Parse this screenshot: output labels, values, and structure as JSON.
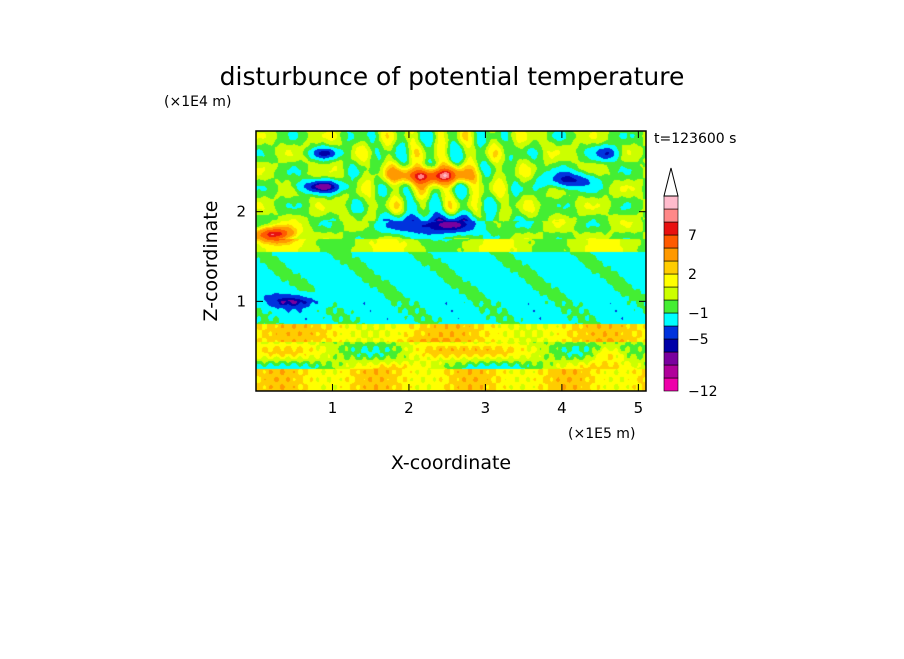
{
  "chart_data": {
    "type": "heatmap",
    "title": "disturbunce of potential temperature",
    "xlabel": "X-coordinate",
    "ylabel": "Z-coordinate",
    "x_unit": "(×1E5 m)",
    "y_unit": "(×1E4 m)",
    "time_label": "t=123600 s",
    "xlim": [
      0,
      5.1
    ],
    "ylim": [
      0,
      2.9
    ],
    "x_ticks": [
      {
        "value": 1,
        "label": "1"
      },
      {
        "value": 2,
        "label": "2"
      },
      {
        "value": 3,
        "label": "3"
      },
      {
        "value": 4,
        "label": "4"
      },
      {
        "value": 5,
        "label": "5"
      }
    ],
    "y_ticks": [
      {
        "value": 1,
        "label": "1"
      },
      {
        "value": 2,
        "label": "2"
      }
    ],
    "grid": false,
    "colorbar": {
      "placement": "right",
      "levels": [
        -12,
        -10,
        -8,
        -6,
        -5,
        -3,
        -1,
        0,
        1,
        2,
        3,
        5,
        7,
        8,
        9,
        10
      ],
      "colors": [
        "#ee00aa",
        "#b0009a",
        "#7a009e",
        "#0000a8",
        "#0033dd",
        "#00ffff",
        "#44ee33",
        "#ccff00",
        "#ffff00",
        "#ffcc00",
        "#ff9900",
        "#ff5a00",
        "#e81010",
        "#ff8888",
        "#ffbbcc"
      ],
      "over_color": "#ffffff",
      "labels": [
        {
          "value": -12,
          "label": "-12"
        },
        {
          "value": -5,
          "label": "-5"
        },
        {
          "value": -1,
          "label": "-1"
        },
        {
          "value": 2,
          "label": "2"
        },
        {
          "value": 7,
          "label": "7"
        }
      ]
    },
    "features": [
      {
        "x": 2.3,
        "z": 2.4,
        "amp": 8.5,
        "sx": 0.45,
        "sz": 0.09
      },
      {
        "x": 0.25,
        "z": 1.75,
        "amp": 8.0,
        "sx": 0.25,
        "sz": 0.08
      },
      {
        "x": 2.35,
        "z": 1.85,
        "amp": -6.5,
        "sx": 0.6,
        "sz": 0.11
      },
      {
        "x": 0.85,
        "z": 2.28,
        "amp": -6.0,
        "sx": 0.3,
        "sz": 0.07
      },
      {
        "x": 4.1,
        "z": 2.35,
        "amp": -5.5,
        "sx": 0.3,
        "sz": 0.09
      },
      {
        "x": 0.9,
        "z": 2.65,
        "amp": -4.5,
        "sx": 0.2,
        "sz": 0.06
      },
      {
        "x": 4.6,
        "z": 2.65,
        "amp": -5.0,
        "sx": 0.15,
        "sz": 0.08
      },
      {
        "x": 0.5,
        "z": 1.0,
        "amp": -4.0,
        "sx": 0.35,
        "sz": 0.07
      },
      {
        "x": 2.2,
        "z": 0.45,
        "amp": 3.0,
        "sx": 0.5,
        "sz": 0.1
      },
      {
        "x": 4.6,
        "z": 0.42,
        "amp": 3.5,
        "sx": 0.25,
        "sz": 0.1
      }
    ]
  }
}
